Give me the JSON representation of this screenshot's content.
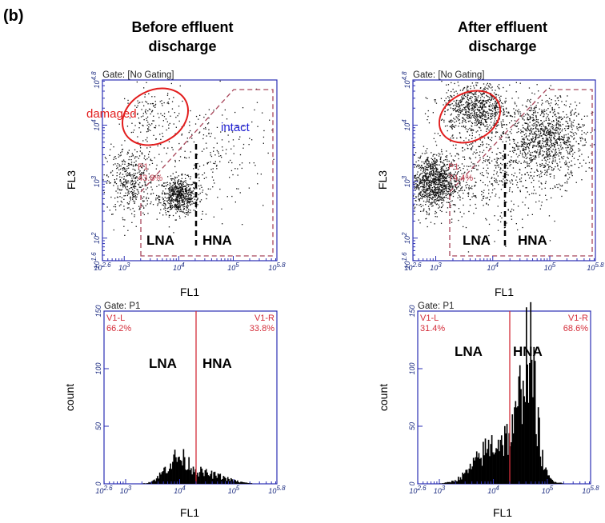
{
  "panel_label": "(b)",
  "columns": [
    {
      "title_line1": "Before effluent",
      "title_line2": "discharge"
    },
    {
      "title_line1": "After effluent",
      "title_line2": "discharge"
    }
  ],
  "colors": {
    "frame": "#2b2fb4",
    "gate": "#a8465a",
    "marker": "#d42e3a",
    "label_damaged": "#e21d1d",
    "label_intact": "#1f1fd8"
  },
  "chart_data": [
    {
      "type": "scatter",
      "title": "Gate: [No Gating]",
      "xlabel": "FL1",
      "ylabel": "FL3",
      "xscale": "log",
      "yscale": "log",
      "xlim": [
        2.6,
        5.8
      ],
      "ylim": [
        1.6,
        4.8
      ],
      "x_tick_labels": [
        "10^2.6",
        "10^3",
        "10^4",
        "10^5",
        "10^5.8"
      ],
      "y_tick_labels": [
        "10^1.6",
        "10^2",
        "10^3",
        "10^4",
        "10^4.8"
      ],
      "gate": {
        "name": "P1",
        "percent": "43.8%"
      },
      "annotations": [
        "damaged",
        "intact",
        "LNA",
        "HNA"
      ],
      "clusters": [
        {
          "x": 4.0,
          "y": 2.75,
          "n": 650,
          "sx": 0.18,
          "sy": 0.16
        },
        {
          "x": 3.1,
          "y": 3.0,
          "n": 420,
          "sx": 0.22,
          "sy": 0.3
        },
        {
          "x": 3.5,
          "y": 4.1,
          "n": 160,
          "sx": 0.25,
          "sy": 0.3
        },
        {
          "x": 4.6,
          "y": 3.5,
          "n": 220,
          "sx": 0.5,
          "sy": 0.5
        }
      ]
    },
    {
      "type": "scatter",
      "title": "Gate: [No Gating]",
      "xlabel": "FL1",
      "ylabel": "FL3",
      "xscale": "log",
      "yscale": "log",
      "xlim": [
        2.6,
        5.8
      ],
      "ylim": [
        1.6,
        4.8
      ],
      "x_tick_labels": [
        "10^2.6",
        "10^3",
        "10^4",
        "10^5",
        "10^5.8"
      ],
      "y_tick_labels": [
        "10^1.6",
        "10^2",
        "10^3",
        "10^4",
        "10^4.8"
      ],
      "gate": {
        "name": "P1",
        "percent": "74.4%"
      },
      "annotations": [
        "LNA",
        "HNA"
      ],
      "clusters": [
        {
          "x": 2.95,
          "y": 3.0,
          "n": 1100,
          "sx": 0.22,
          "sy": 0.24
        },
        {
          "x": 3.7,
          "y": 4.3,
          "n": 750,
          "sx": 0.3,
          "sy": 0.22
        },
        {
          "x": 4.95,
          "y": 3.75,
          "n": 1000,
          "sx": 0.32,
          "sy": 0.35
        },
        {
          "x": 4.0,
          "y": 3.3,
          "n": 600,
          "sx": 0.55,
          "sy": 0.55
        }
      ]
    },
    {
      "type": "bar",
      "title": "Gate: P1",
      "xlabel": "FL1",
      "ylabel": "count",
      "xscale": "log",
      "xlim": [
        2.6,
        5.8
      ],
      "ylim": [
        0,
        150
      ],
      "x_tick_labels": [
        "10^2.6",
        "10^3",
        "10^4",
        "10^5",
        "10^5.8"
      ],
      "y_ticks": [
        0,
        50,
        100,
        150
      ],
      "marker_x": 4.3,
      "regions": [
        {
          "name": "V1-L",
          "percent": "66.2%"
        },
        {
          "name": "V1-R",
          "percent": "33.8%"
        }
      ],
      "annotations": [
        "LNA",
        "HNA"
      ],
      "peaks": [
        {
          "x": 3.95,
          "height": 20,
          "sigma": 0.22
        },
        {
          "x": 4.5,
          "height": 8,
          "sigma": 0.35
        }
      ]
    },
    {
      "type": "bar",
      "title": "Gate: P1",
      "xlabel": "FL1",
      "ylabel": "count",
      "xscale": "log",
      "xlim": [
        2.6,
        5.8
      ],
      "ylim": [
        0,
        150
      ],
      "x_tick_labels": [
        "10^2.6",
        "10^3",
        "10^4",
        "10^5",
        "10^5.8"
      ],
      "y_ticks": [
        0,
        50,
        100,
        150
      ],
      "marker_x": 4.3,
      "regions": [
        {
          "name": "V1-L",
          "percent": "31.4%"
        },
        {
          "name": "V1-R",
          "percent": "68.6%"
        }
      ],
      "annotations": [
        "LNA",
        "HNA"
      ],
      "peaks": [
        {
          "x": 4.65,
          "height": 92,
          "sigma": 0.13
        },
        {
          "x": 4.45,
          "height": 28,
          "sigma": 0.3
        },
        {
          "x": 3.95,
          "height": 26,
          "sigma": 0.32
        }
      ]
    }
  ]
}
